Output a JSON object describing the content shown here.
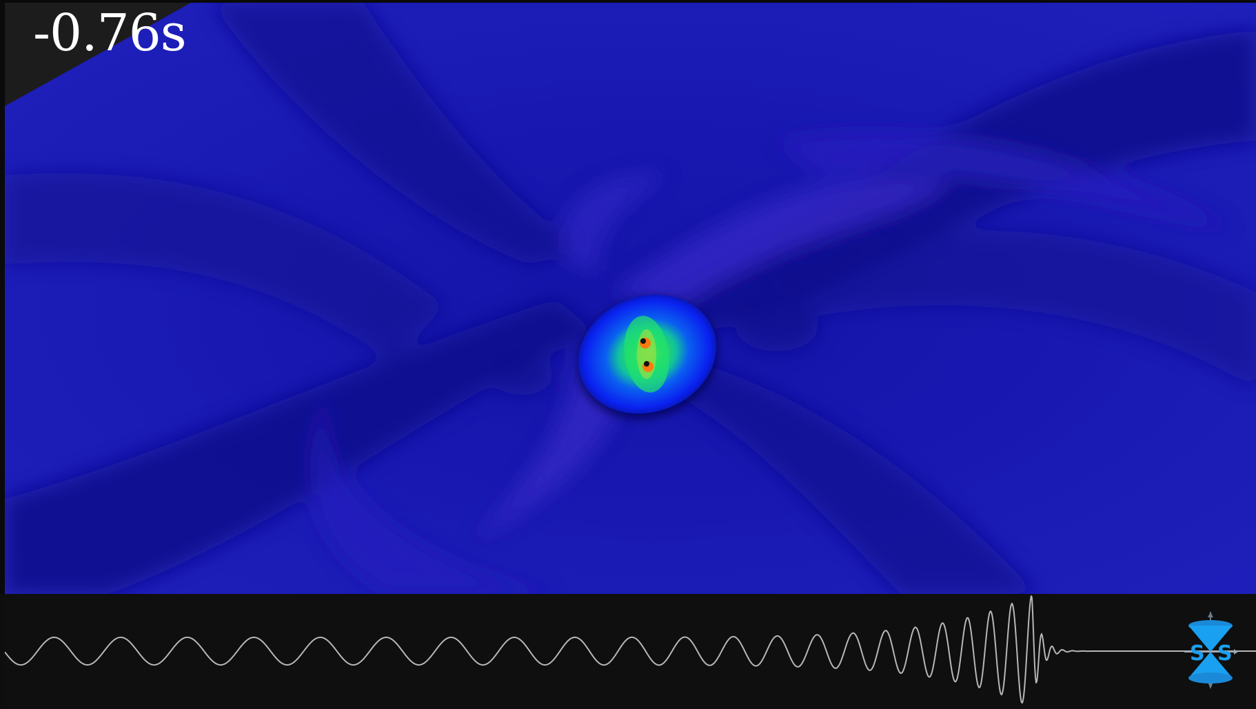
{
  "overlay": {
    "time_label": "-0.76s"
  },
  "logo": {
    "left_letter": "S",
    "right_letter": "S"
  },
  "colors": {
    "field_background": "#1818b8",
    "field_dark": "#0a0a86",
    "field_light": "#3525c8",
    "core_blue": "#0a22f0",
    "core_green": "#10e060",
    "core_yellow": "#e8e020",
    "black_hole_orange": "#ff7a10",
    "waveform_stroke": "#b8b8b8",
    "panel_bg": "#0f0f0f",
    "logo_blue": "#1aa0f0",
    "progress_marker": "#ff2aa0"
  },
  "icons": {
    "logo": "hourglass-light-cone-icon"
  }
}
